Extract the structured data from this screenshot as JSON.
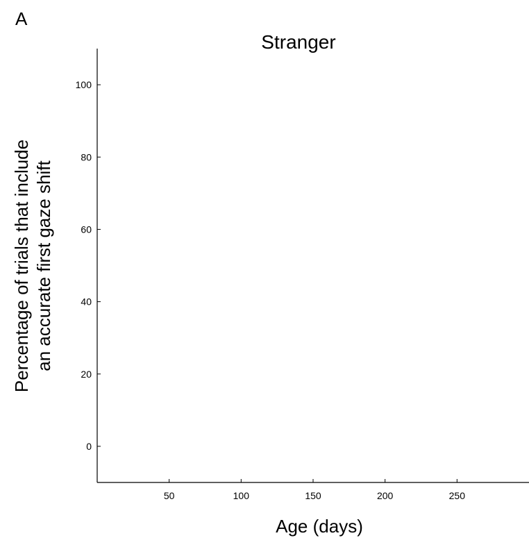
{
  "panel_label": "A",
  "chart_data": {
    "type": "scatter",
    "title": "Stranger",
    "xlabel": "Age (days)",
    "ylabel_lines": [
      "Percentage of trials that include",
      "an accurate first gaze shift"
    ],
    "xlim": [
      0,
      300
    ],
    "ylim": [
      -10,
      110
    ],
    "xticks": [
      50,
      100,
      150,
      200,
      250
    ],
    "yticks": [
      0,
      20,
      40,
      60,
      80,
      100
    ],
    "grid": false,
    "series": [],
    "colors": {
      "axis": "#000000",
      "background": "#ffffff"
    }
  }
}
